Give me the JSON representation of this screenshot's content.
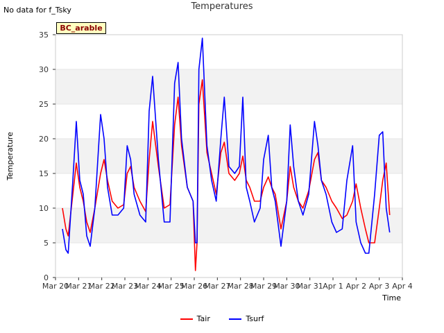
{
  "page": {
    "nodata_note": "No data for f_Tsky",
    "site_tag": "BC_arable"
  },
  "chart_data": {
    "type": "line",
    "title": "Temperatures",
    "xlabel": "Time",
    "ylabel": "Temperature",
    "xlim": [
      0,
      15
    ],
    "ylim": [
      0,
      35
    ],
    "x_ticks": [
      0,
      1,
      2,
      3,
      4,
      5,
      6,
      7,
      8,
      9,
      10,
      11,
      12,
      13,
      14,
      15
    ],
    "x_tick_labels": [
      "Mar 20",
      "Mar 21",
      "Mar 22",
      "Mar 23",
      "Mar 24",
      "Mar 25",
      "Mar 26",
      "Mar 27",
      "Mar 28",
      "Mar 29",
      "Mar 30",
      "Mar 31",
      "Apr 1",
      "Apr 2",
      "Apr 3",
      "Apr 4"
    ],
    "y_ticks": [
      0,
      5,
      10,
      15,
      20,
      25,
      30,
      35
    ],
    "y_tick_labels": [
      "0",
      "5",
      "10",
      "15",
      "20",
      "25",
      "30",
      "35"
    ],
    "bands": [
      [
        5,
        10
      ],
      [
        15,
        20
      ],
      [
        25,
        30
      ]
    ],
    "legend_position": "bottom",
    "series": [
      {
        "name": "Tair",
        "color": "#ff0000",
        "x": [
          0.3,
          0.45,
          0.55,
          0.75,
          0.9,
          1.05,
          1.2,
          1.35,
          1.5,
          1.7,
          1.95,
          2.1,
          2.25,
          2.45,
          2.7,
          2.95,
          3.1,
          3.25,
          3.4,
          3.65,
          3.9,
          4.05,
          4.2,
          4.45,
          4.7,
          4.95,
          5.15,
          5.3,
          5.45,
          5.7,
          5.95,
          6.05,
          6.12,
          6.2,
          6.35,
          6.55,
          6.75,
          6.95,
          7.15,
          7.3,
          7.5,
          7.75,
          7.95,
          8.1,
          8.25,
          8.4,
          8.6,
          8.85,
          9.0,
          9.2,
          9.35,
          9.5,
          9.75,
          10.0,
          10.15,
          10.3,
          10.5,
          10.7,
          10.95,
          11.2,
          11.35,
          11.5,
          11.7,
          11.95,
          12.15,
          12.4,
          12.6,
          12.85,
          13.0,
          13.2,
          13.4,
          13.55,
          13.8,
          14.0,
          14.15,
          14.3,
          14.45
        ],
        "y": [
          10,
          7,
          6,
          12,
          16.5,
          13,
          11,
          8,
          6.5,
          10,
          15,
          17,
          14,
          11,
          10,
          10.5,
          15,
          16,
          13,
          11,
          9.5,
          17,
          22.5,
          16,
          10,
          10.5,
          22,
          26,
          19,
          13,
          11,
          1,
          5,
          25,
          28.5,
          18,
          15,
          12,
          18,
          19.5,
          15,
          14,
          15,
          17.5,
          14,
          13,
          11,
          11,
          13,
          14.5,
          13,
          12,
          7,
          11,
          16,
          13,
          11,
          10,
          12.5,
          17,
          18,
          14,
          13,
          11,
          10,
          8.5,
          9,
          11,
          13.5,
          10,
          7,
          5,
          5,
          10,
          14,
          16.5,
          9
        ]
      },
      {
        "name": "Tsurf",
        "color": "#0000ff",
        "x": [
          0.3,
          0.45,
          0.55,
          0.75,
          0.9,
          1.05,
          1.2,
          1.35,
          1.5,
          1.7,
          1.95,
          2.1,
          2.25,
          2.45,
          2.7,
          2.95,
          3.1,
          3.25,
          3.4,
          3.65,
          3.9,
          4.05,
          4.2,
          4.45,
          4.7,
          4.95,
          5.15,
          5.3,
          5.45,
          5.7,
          5.95,
          6.05,
          6.12,
          6.2,
          6.35,
          6.55,
          6.75,
          6.95,
          7.15,
          7.3,
          7.5,
          7.75,
          7.95,
          8.1,
          8.25,
          8.4,
          8.6,
          8.85,
          9.0,
          9.2,
          9.35,
          9.5,
          9.75,
          10.0,
          10.15,
          10.3,
          10.5,
          10.7,
          10.95,
          11.2,
          11.35,
          11.5,
          11.7,
          11.95,
          12.15,
          12.4,
          12.6,
          12.85,
          13.0,
          13.2,
          13.4,
          13.55,
          13.8,
          14.0,
          14.15,
          14.3,
          14.45
        ],
        "y": [
          7,
          4,
          3.5,
          14,
          22.5,
          14,
          12,
          6,
          4.5,
          10,
          23.5,
          20,
          13,
          9,
          9,
          10,
          19,
          17,
          12,
          9,
          8,
          24,
          29,
          17,
          8,
          8,
          28,
          31,
          20,
          13,
          11,
          5,
          5,
          30,
          34.5,
          19,
          14,
          11,
          20,
          26,
          16,
          15,
          16,
          26,
          13,
          11,
          8,
          10,
          17,
          20.5,
          13,
          11,
          4.5,
          11,
          22,
          16,
          11,
          9,
          12,
          22.5,
          19,
          14,
          12,
          8,
          6.5,
          7,
          14,
          19,
          8,
          5,
          3.5,
          3.5,
          12,
          20.5,
          21,
          10,
          6.5
        ]
      }
    ]
  }
}
